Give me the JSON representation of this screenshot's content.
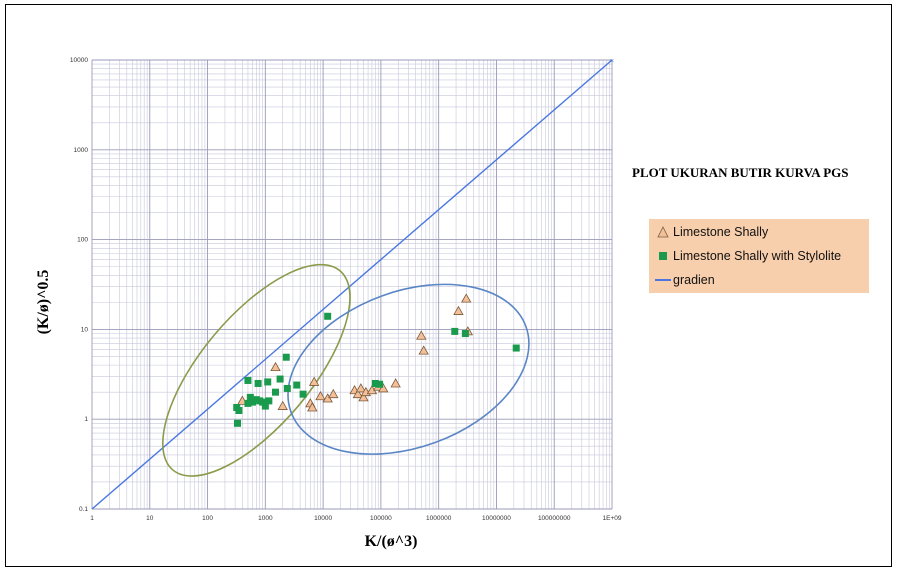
{
  "chart_data": {
    "type": "scatter",
    "title": "PLOT UKURAN BUTIR KURVA PGS",
    "xlabel": "K/(ø^3)",
    "ylabel": "(K/ø)^0.5",
    "x_scale": "log",
    "y_scale": "log",
    "xlim": [
      1,
      1000000000
    ],
    "ylim": [
      0.1,
      10000
    ],
    "grid": true,
    "legend_position": "right",
    "x_tick_labels": [
      "1",
      "10",
      "100",
      "1000",
      "10000",
      "100000",
      "1000000",
      "10000000",
      "100000000",
      "1E+09"
    ],
    "y_tick_labels": [
      "0.1",
      "1",
      "10",
      "100",
      "1000",
      "10000"
    ],
    "series": [
      {
        "name": "Limestone Shally",
        "marker": "triangle",
        "color": "#f4c09a",
        "points": [
          [
            400,
            1.6
          ],
          [
            1500,
            3.8
          ],
          [
            2000,
            1.4
          ],
          [
            6000,
            1.5
          ],
          [
            6500,
            1.35
          ],
          [
            7000,
            2.6
          ],
          [
            9000,
            1.8
          ],
          [
            12000,
            1.7
          ],
          [
            15000,
            1.9
          ],
          [
            35000,
            2.1
          ],
          [
            40000,
            1.9
          ],
          [
            45000,
            2.2
          ],
          [
            50000,
            1.75
          ],
          [
            55000,
            2.0
          ],
          [
            70000,
            2.1
          ],
          [
            90000,
            2.3
          ],
          [
            110000,
            2.2
          ],
          [
            180000,
            2.5
          ],
          [
            500000,
            8.5
          ],
          [
            550000,
            5.8
          ],
          [
            2200000,
            16
          ],
          [
            3000000,
            22
          ],
          [
            3200000,
            9.5
          ]
        ]
      },
      {
        "name": "Limestone Shally with Stylolite",
        "marker": "square",
        "color": "#1a9a4c",
        "points": [
          [
            320,
            1.35
          ],
          [
            330,
            0.9
          ],
          [
            350,
            1.25
          ],
          [
            500,
            2.7
          ],
          [
            500,
            1.5
          ],
          [
            550,
            1.75
          ],
          [
            600,
            1.55
          ],
          [
            700,
            1.65
          ],
          [
            750,
            2.5
          ],
          [
            800,
            1.6
          ],
          [
            900,
            1.55
          ],
          [
            1000,
            1.4
          ],
          [
            1100,
            2.6
          ],
          [
            1150,
            1.6
          ],
          [
            1500,
            2.0
          ],
          [
            1800,
            2.8
          ],
          [
            2300,
            4.9
          ],
          [
            2400,
            2.2
          ],
          [
            3500,
            2.4
          ],
          [
            4500,
            1.9
          ],
          [
            12000,
            14
          ],
          [
            80000,
            2.5
          ],
          [
            95000,
            2.45
          ],
          [
            1900000,
            9.5
          ],
          [
            2900000,
            9.0
          ],
          [
            22000000,
            6.2
          ]
        ]
      },
      {
        "name": "gradien",
        "marker": "line",
        "color": "#4a78e0",
        "points": [
          [
            1,
            0.1
          ],
          [
            1000000000,
            10000
          ]
        ]
      }
    ],
    "annotations": [
      {
        "shape": "ellipse",
        "color": "#8a9b4a",
        "center": [
          700,
          3.5
        ],
        "note": "cluster of Limestone Shally with Stylolite"
      },
      {
        "shape": "ellipse",
        "color": "#5a86c5",
        "center": [
          300000,
          3.5
        ],
        "note": "cluster of Limestone Shally"
      }
    ]
  }
}
